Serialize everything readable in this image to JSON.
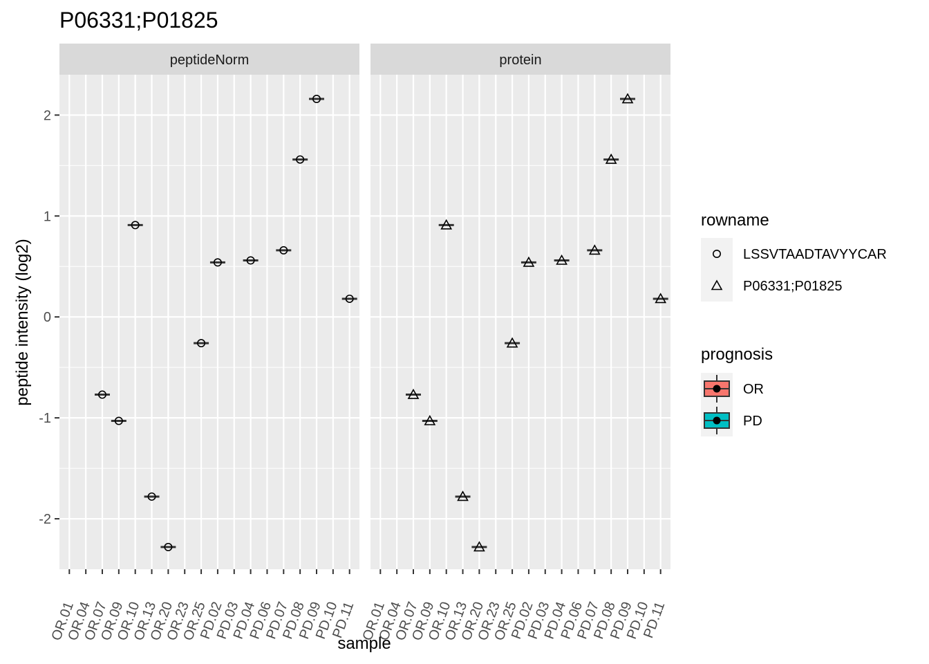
{
  "chart_data": {
    "type": "scatter",
    "title": "P06331;P01825",
    "xlabel": "sample",
    "ylabel": "peptide intensity (log2)",
    "ylim": [
      -2.5,
      2.4
    ],
    "yticks": [
      -2,
      -1,
      0,
      1,
      2
    ],
    "yticklabels": [
      "-2",
      "-1",
      "0",
      "1",
      "2"
    ],
    "grid": true,
    "categories": [
      "OR.01",
      "OR.04",
      "OR.07",
      "OR.09",
      "OR.10",
      "OR.13",
      "OR.20",
      "OR.23",
      "OR.25",
      "PD.02",
      "PD.03",
      "PD.04",
      "PD.06",
      "PD.07",
      "PD.08",
      "PD.09",
      "PD.10",
      "PD.11"
    ],
    "facets": [
      {
        "name": "peptideNorm",
        "series": [
          {
            "name": "LSSVTAADTAVYYCAR",
            "shape": "circle",
            "points": [
              {
                "x": "OR.07",
                "y": -0.77
              },
              {
                "x": "OR.09",
                "y": -1.03
              },
              {
                "x": "OR.10",
                "y": 0.91
              },
              {
                "x": "OR.13",
                "y": -1.78
              },
              {
                "x": "OR.20",
                "y": -2.28
              },
              {
                "x": "OR.25",
                "y": -0.26
              },
              {
                "x": "PD.02",
                "y": 0.54
              },
              {
                "x": "PD.04",
                "y": 0.56
              },
              {
                "x": "PD.07",
                "y": 0.66
              },
              {
                "x": "PD.08",
                "y": 1.56
              },
              {
                "x": "PD.09",
                "y": 2.16
              },
              {
                "x": "PD.11",
                "y": 0.18
              }
            ]
          }
        ]
      },
      {
        "name": "protein",
        "series": [
          {
            "name": "P06331;P01825",
            "shape": "triangle",
            "points": [
              {
                "x": "OR.07",
                "y": -0.77
              },
              {
                "x": "OR.09",
                "y": -1.03
              },
              {
                "x": "OR.10",
                "y": 0.91
              },
              {
                "x": "OR.13",
                "y": -1.78
              },
              {
                "x": "OR.20",
                "y": -2.28
              },
              {
                "x": "OR.25",
                "y": -0.26
              },
              {
                "x": "PD.02",
                "y": 0.54
              },
              {
                "x": "PD.04",
                "y": 0.56
              },
              {
                "x": "PD.07",
                "y": 0.66
              },
              {
                "x": "PD.08",
                "y": 1.56
              },
              {
                "x": "PD.09",
                "y": 2.16
              },
              {
                "x": "PD.11",
                "y": 0.18
              }
            ]
          }
        ]
      }
    ],
    "legends": [
      {
        "title": "rowname",
        "entries": [
          {
            "label": "LSSVTAADTAVYYCAR",
            "shape": "circle"
          },
          {
            "label": "P06331;P01825",
            "shape": "triangle"
          }
        ]
      },
      {
        "title": "prognosis",
        "entries": [
          {
            "label": "OR",
            "color": "#F8766D"
          },
          {
            "label": "PD",
            "color": "#00BFC4"
          }
        ]
      }
    ],
    "legend_position": "right",
    "colors": {
      "panel_bg": "#EBEBEB",
      "strip_bg": "#D9D9D9",
      "grid": "#FFFFFF",
      "marker": "#000000",
      "box_line": "#333333"
    }
  }
}
